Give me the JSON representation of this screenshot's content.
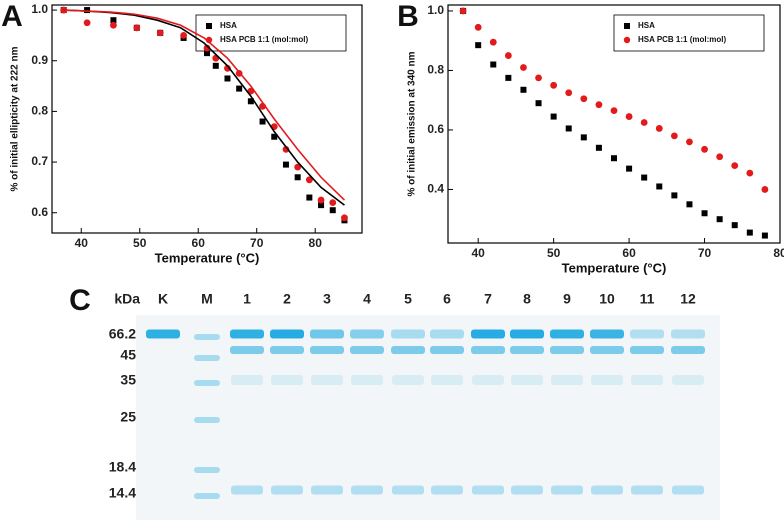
{
  "chart_data": [
    {
      "type": "scatter",
      "panel_label": "A",
      "xlabel": "Temperature (°C)",
      "ylabel": "% of initial ellipticity at 222 nm",
      "xlim": [
        35,
        88
      ],
      "ylim": [
        0.56,
        1.01
      ],
      "xticks": [
        40,
        50,
        60,
        70,
        80
      ],
      "yticks": [
        0.6,
        0.7,
        0.8,
        0.9,
        {
          "value": 1,
          "label": "1.0"
        }
      ],
      "legend": "upper right",
      "series": [
        {
          "name": "HSA",
          "color": "#000000",
          "marker": "square",
          "x": [
            37,
            41,
            45.5,
            49.5,
            53.5,
            57.5,
            61.5,
            63,
            65,
            67,
            69,
            71,
            73,
            75,
            77,
            79,
            81,
            83,
            85
          ],
          "values": [
            1.0,
            1.0,
            0.98,
            0.965,
            0.955,
            0.945,
            0.915,
            0.89,
            0.865,
            0.845,
            0.82,
            0.78,
            0.75,
            0.695,
            0.67,
            0.63,
            0.615,
            0.605,
            0.585
          ]
        },
        {
          "name": "HSA PCB 1:1 (mol:mol)",
          "color": "#e31a1c",
          "marker": "circle",
          "x": [
            37,
            41,
            45.5,
            49.5,
            53.5,
            57.5,
            61.5,
            63,
            65,
            67,
            69,
            71,
            73,
            75,
            77,
            79,
            81,
            83,
            85
          ],
          "values": [
            1.0,
            0.975,
            0.97,
            0.965,
            0.955,
            0.95,
            0.925,
            0.905,
            0.885,
            0.875,
            0.84,
            0.81,
            0.77,
            0.725,
            0.69,
            0.665,
            0.625,
            0.62,
            0.59
          ]
        },
        {
          "color": "#000000",
          "marker": "line",
          "x": [
            37,
            41,
            45,
            49,
            53,
            57,
            61,
            65,
            69,
            73,
            77,
            81,
            85
          ],
          "values": [
            1.0,
            0.998,
            0.995,
            0.99,
            0.98,
            0.965,
            0.935,
            0.89,
            0.83,
            0.76,
            0.7,
            0.65,
            0.615
          ]
        },
        {
          "color": "#e31a1c",
          "marker": "line",
          "x": [
            37,
            41,
            45,
            49,
            53,
            57,
            61,
            65,
            69,
            73,
            77,
            81,
            85
          ],
          "values": [
            1.0,
            0.998,
            0.996,
            0.992,
            0.984,
            0.97,
            0.945,
            0.905,
            0.85,
            0.785,
            0.725,
            0.67,
            0.625
          ]
        }
      ]
    },
    {
      "type": "scatter",
      "panel_label": "B",
      "xlabel": "Temperature (°C)",
      "ylabel": "% of initial emission at 340 nm",
      "xlim": [
        36,
        80
      ],
      "ylim": [
        0.22,
        1.02
      ],
      "xticks": [
        40,
        50,
        60,
        70,
        80
      ],
      "yticks": [
        0.4,
        0.6,
        0.8,
        {
          "value": 1,
          "label": "1.0"
        }
      ],
      "legend": "upper right",
      "series": [
        {
          "name": "HSA",
          "color": "#000000",
          "marker": "square",
          "x": [
            38,
            40,
            42,
            44,
            46,
            48,
            50,
            52,
            54,
            56,
            58,
            60,
            62,
            64,
            66,
            68,
            70,
            72,
            74,
            76,
            78
          ],
          "values": [
            1.0,
            0.885,
            0.82,
            0.775,
            0.735,
            0.69,
            0.645,
            0.605,
            0.575,
            0.54,
            0.505,
            0.47,
            0.44,
            0.41,
            0.38,
            0.35,
            0.32,
            0.3,
            0.28,
            0.255,
            0.245
          ]
        },
        {
          "name": "HSA PCB 1:1 (mol:mol)",
          "color": "#e31a1c",
          "marker": "circle",
          "x": [
            38,
            40,
            42,
            44,
            46,
            48,
            50,
            52,
            54,
            56,
            58,
            60,
            62,
            64,
            66,
            68,
            70,
            72,
            74,
            76,
            78
          ],
          "values": [
            1.0,
            0.945,
            0.895,
            0.85,
            0.81,
            0.775,
            0.75,
            0.725,
            0.705,
            0.685,
            0.665,
            0.645,
            0.625,
            0.605,
            0.58,
            0.56,
            0.535,
            0.51,
            0.48,
            0.455,
            0.4
          ]
        }
      ]
    }
  ],
  "gel": {
    "panel_label": "C",
    "unit_label": "kDa",
    "lanes": [
      "K",
      "M",
      "1",
      "2",
      "3",
      "4",
      "5",
      "6",
      "7",
      "8",
      "9",
      "10",
      "11",
      "12"
    ],
    "markers": [
      "66.2",
      "45",
      "35",
      "25",
      "18.4",
      "14.4"
    ]
  }
}
